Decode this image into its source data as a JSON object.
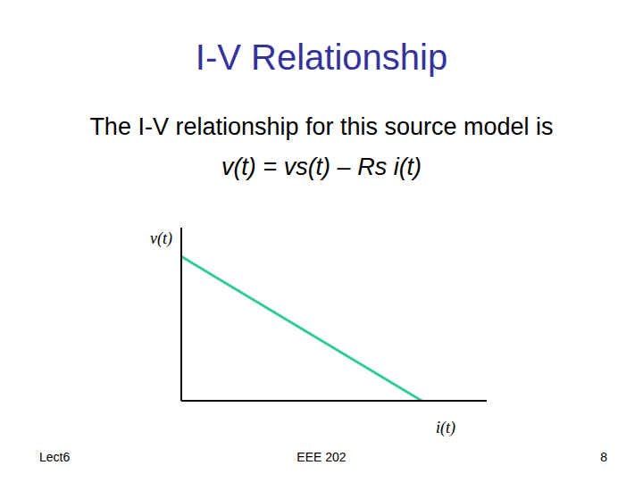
{
  "chart_data": {
    "type": "line",
    "title": "I-V Relationship",
    "subtitle": "The I-V relationship for this source model is",
    "annotations": [
      "v(t) = vs(t) – Rs i(t)",
      "Lect6",
      "EEE 202",
      "8"
    ],
    "x_label": "i(t)",
    "y_label": "v(t)",
    "x": [
      0,
      10
    ],
    "values": [
      10,
      0
    ],
    "xlim": [
      0,
      12.7
    ],
    "ylim": [
      0,
      12
    ],
    "color": "#33cc99",
    "tick_labels": false,
    "grid": false
  }
}
